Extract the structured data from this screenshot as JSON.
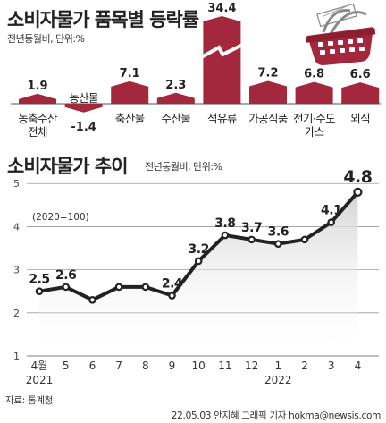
{
  "bar_section": {
    "title": "소비자물가 품목별 등락률",
    "unit_note": "전년동월비, 단위:%"
  },
  "line_section": {
    "title": "소비자물가 추이",
    "unit_note": "전년동월비, 단위:%",
    "base_note": "(2020=100)"
  },
  "colors": {
    "bar": "#a3283d",
    "bar_edge": "#7d1728",
    "line": "#222222",
    "basket": "#a3283d"
  },
  "icons": [
    "shopping-basket-icon"
  ],
  "chart_data": [
    {
      "type": "bar",
      "title": "소비자물가 품목별 등락률",
      "unit": "전년동월비, 단위:%",
      "categories": [
        "농축수산 전체",
        "농산물",
        "축산물",
        "수산물",
        "석유류",
        "가공식품",
        "전기·수도 가스",
        "외식"
      ],
      "category_lines": [
        [
          "농축수산",
          "전체"
        ],
        [
          "농산물"
        ],
        [
          "축산물"
        ],
        [
          "수산물"
        ],
        [
          "석유류"
        ],
        [
          "가공식품"
        ],
        [
          "전기·수도",
          "가스"
        ],
        [
          "외식"
        ]
      ],
      "values": [
        1.9,
        -1.4,
        7.1,
        2.3,
        34.4,
        7.2,
        6.8,
        6.6
      ],
      "value_labels": [
        "1.9",
        "-1.4",
        "7.1",
        "2.3",
        "34.4",
        "7.2",
        "6.8",
        "6.6"
      ],
      "broken_axis_bar": "석유류"
    },
    {
      "type": "line",
      "title": "소비자물가 추이",
      "unit": "전년동월비, 단위:%",
      "x": [
        "4월",
        "5",
        "6",
        "7",
        "8",
        "9",
        "10",
        "11",
        "12",
        "1",
        "2",
        "3",
        "4"
      ],
      "values": [
        2.5,
        2.6,
        2.3,
        2.6,
        2.6,
        2.4,
        3.2,
        3.8,
        3.7,
        3.6,
        3.7,
        4.1,
        4.8
      ],
      "labeled_points": [
        0,
        1,
        5,
        6,
        7,
        8,
        9,
        11,
        12
      ],
      "year_labels": [
        {
          "text": "2021",
          "index": 0
        },
        {
          "text": "2022",
          "index": 9
        }
      ],
      "yticks": [
        1,
        2,
        3,
        4,
        5
      ],
      "ylim": [
        1,
        5.15
      ],
      "grid": true
    }
  ],
  "footer": {
    "source": "자료: 통계청",
    "credit": "22.05.03 안지혜 그래픽 기자 hokma@newsis.com"
  }
}
